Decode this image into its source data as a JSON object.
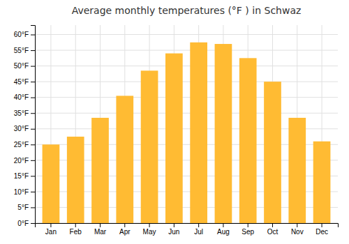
{
  "chart_data": {
    "type": "bar",
    "title": "Average monthly temperatures (°F ) in Schwaz",
    "categories": [
      "Jan",
      "Feb",
      "Mar",
      "Apr",
      "May",
      "Jun",
      "Jul",
      "Aug",
      "Sep",
      "Oct",
      "Nov",
      "Dec"
    ],
    "values": [
      25.0,
      27.5,
      33.5,
      40.5,
      48.5,
      54.0,
      57.5,
      57.0,
      52.5,
      45.0,
      33.5,
      26.0
    ],
    "color": "#FFBB33",
    "ylim": [
      0,
      63
    ],
    "yticks": [
      {
        "value": 0,
        "label": "0°F"
      },
      {
        "value": 5,
        "label": "5°F"
      },
      {
        "value": 10,
        "label": "10°F"
      },
      {
        "value": 15,
        "label": "15°F"
      },
      {
        "value": 20,
        "label": "20°F"
      },
      {
        "value": 25,
        "label": "25°F"
      },
      {
        "value": 30,
        "label": "30°F"
      },
      {
        "value": 35,
        "label": "35°F"
      },
      {
        "value": 40,
        "label": "40°F"
      },
      {
        "value": 45,
        "label": "45°F"
      },
      {
        "value": 50,
        "label": "50°F"
      },
      {
        "value": 55,
        "label": "55°F"
      },
      {
        "value": 60,
        "label": "60°F"
      }
    ],
    "grid": true
  }
}
